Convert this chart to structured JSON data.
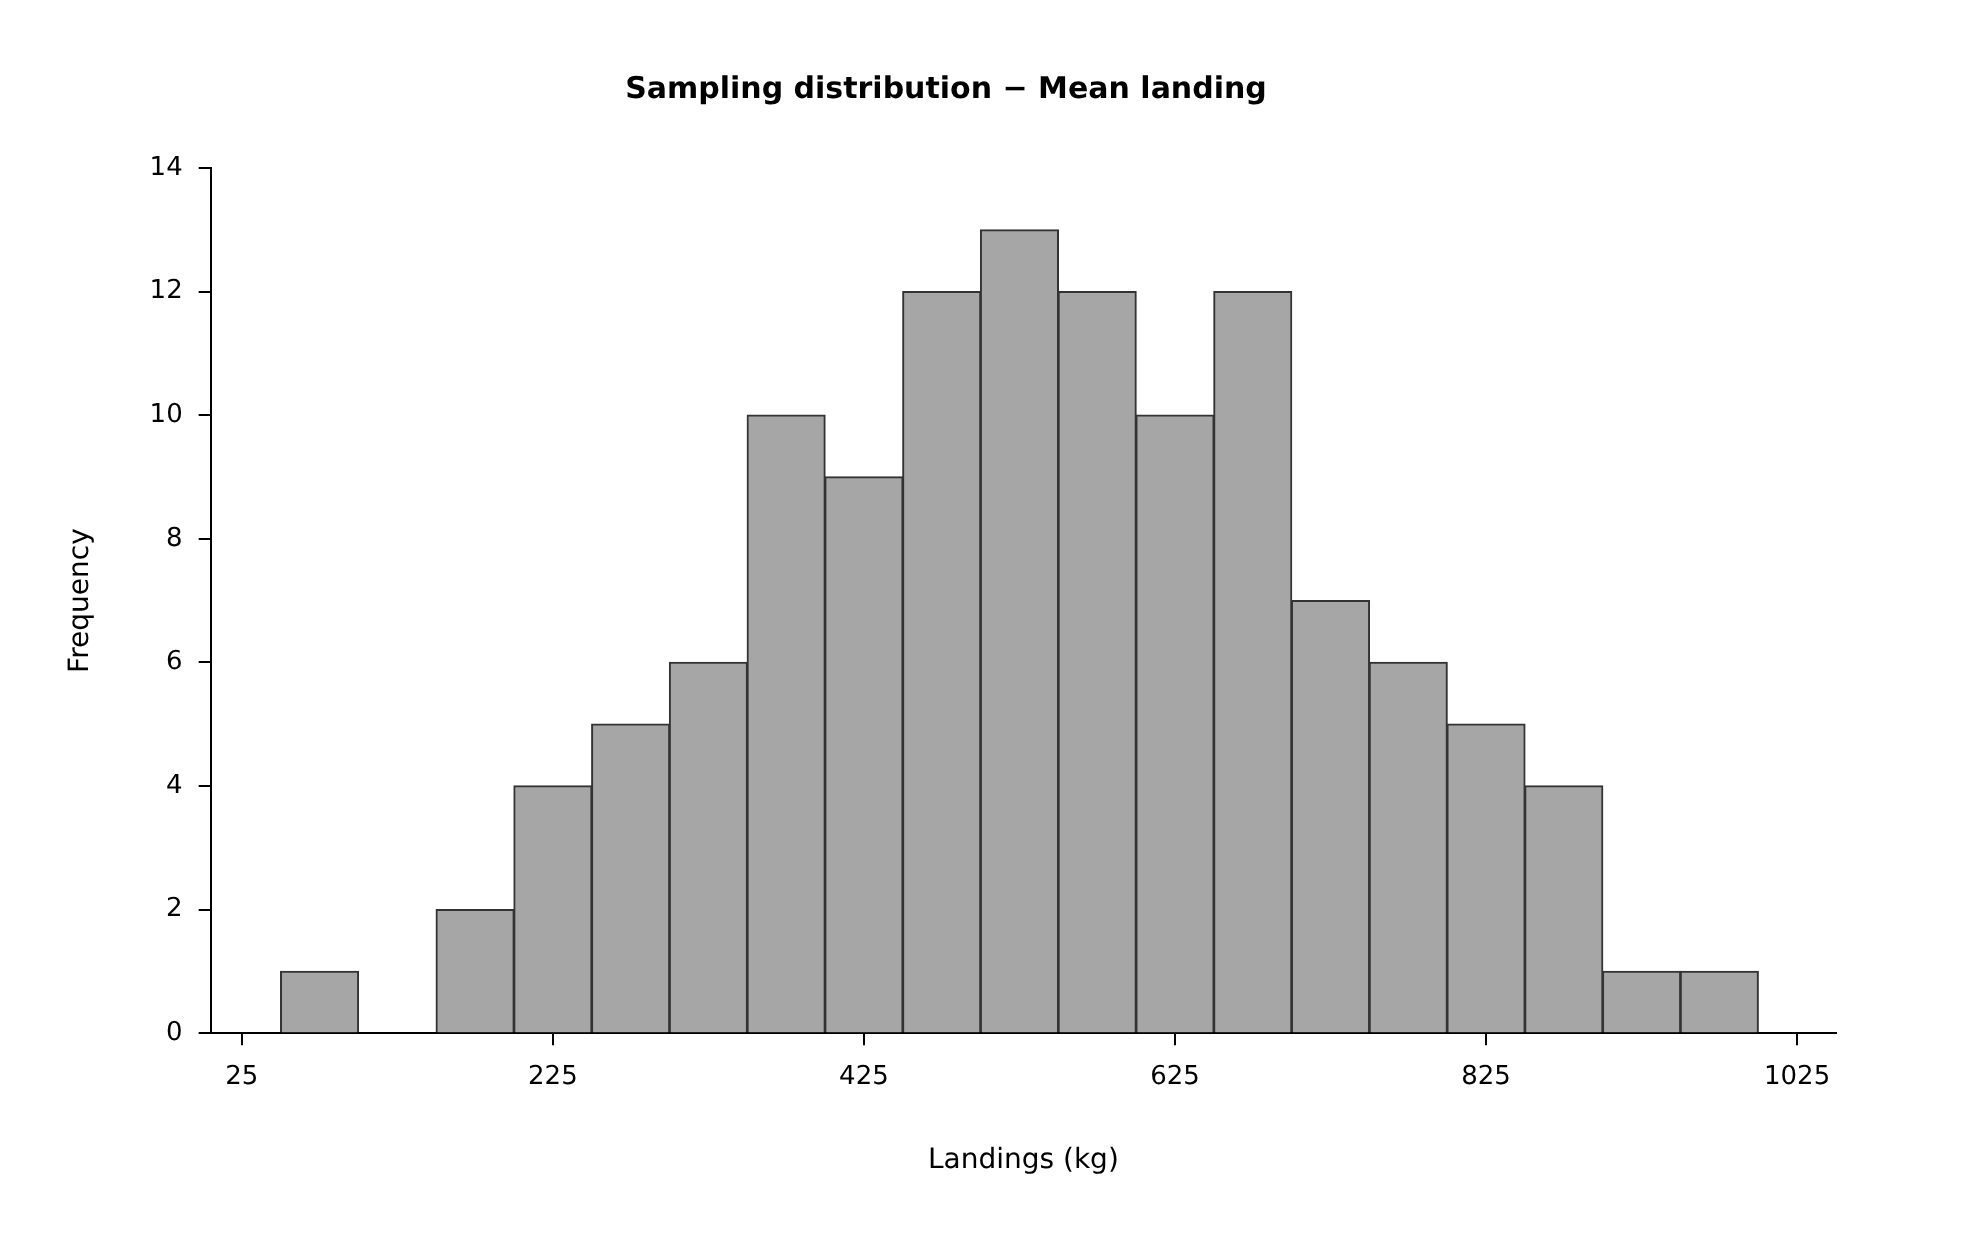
{
  "chart_data": {
    "type": "histogram",
    "title": "Sampling distribution − Mean landing",
    "xlabel": "Landings (kg)",
    "ylabel": "Frequency",
    "bins": [
      50,
      100,
      150,
      200,
      250,
      300,
      350,
      400,
      450,
      500,
      550,
      600,
      650,
      700,
      750,
      800,
      850,
      900,
      950,
      1000
    ],
    "values": [
      1,
      0,
      2,
      4,
      5,
      6,
      10,
      9,
      12,
      13,
      12,
      10,
      12,
      7,
      6,
      5,
      4,
      1,
      1
    ],
    "color": "#a6a6a6",
    "xlim": [
      5,
      1050
    ],
    "xticks": [
      25,
      225,
      425,
      625,
      825,
      1025
    ],
    "ylim": [
      0,
      14
    ],
    "yticks": [
      0,
      2,
      4,
      6,
      8,
      10,
      12,
      14
    ],
    "grid": false,
    "legend": false
  }
}
